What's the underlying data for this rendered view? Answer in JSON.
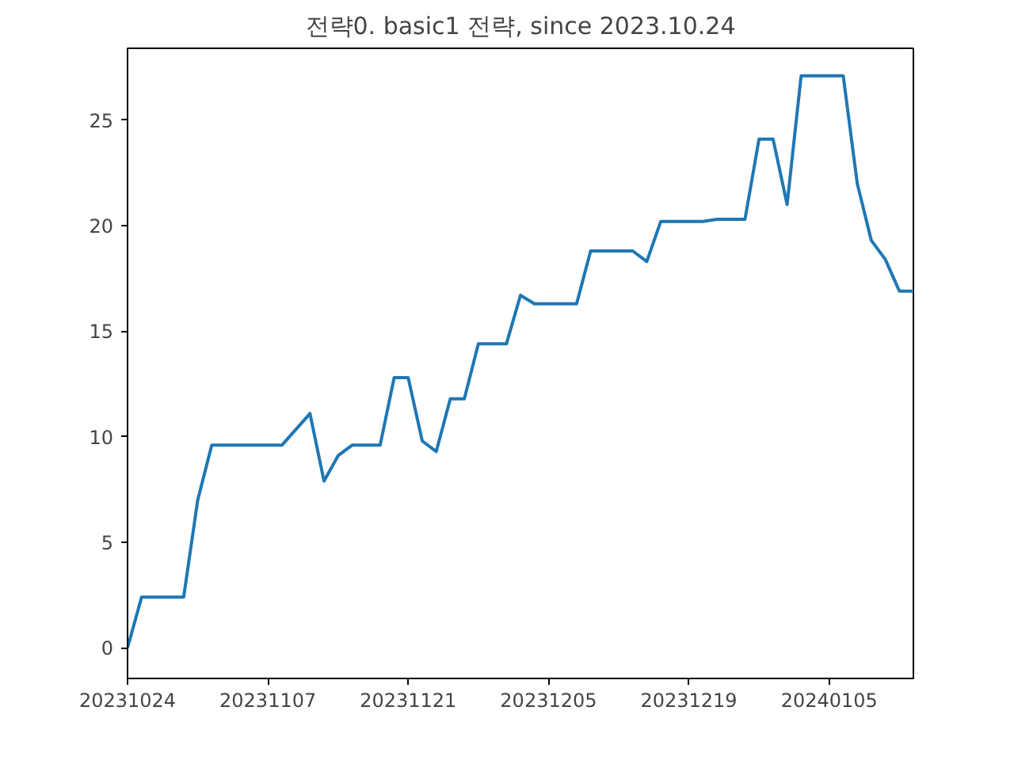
{
  "chart_data": {
    "type": "line",
    "title": "전략0. basic1 전략, since 2023.10.24",
    "categories": [
      "20231024",
      null,
      null,
      null,
      null,
      null,
      null,
      null,
      null,
      null,
      "20231107",
      null,
      null,
      null,
      null,
      null,
      null,
      null,
      null,
      null,
      "20231121",
      null,
      null,
      null,
      null,
      null,
      null,
      null,
      null,
      null,
      "20231205",
      null,
      null,
      null,
      null,
      null,
      null,
      null,
      null,
      null,
      "20231219",
      null,
      null,
      null,
      null,
      null,
      null,
      null,
      null,
      null,
      "20240105",
      null,
      null,
      null,
      null,
      null,
      null
    ],
    "series": [
      {
        "color": "#1f77b4",
        "values": [
          0,
          2.4,
          2.4,
          2.4,
          2.4,
          7.0,
          9.6,
          9.6,
          9.6,
          9.6,
          9.6,
          9.6,
          10.35,
          11.1,
          7.9,
          9.1,
          9.6,
          9.6,
          9.6,
          12.8,
          12.8,
          9.8,
          9.3,
          11.8,
          11.8,
          14.4,
          14.4,
          14.4,
          16.7,
          16.3,
          16.3,
          16.3,
          16.3,
          18.8,
          18.8,
          18.8,
          18.8,
          18.3,
          20.2,
          20.2,
          20.2,
          20.2,
          20.3,
          20.3,
          20.3,
          24.1,
          24.1,
          21.0,
          27.1,
          27.1,
          27.1,
          27.1,
          22.0,
          19.3,
          18.4,
          16.9,
          16.9
        ]
      }
    ],
    "ylim": [
      -1.45,
      28.4
    ],
    "yticks": [
      0,
      5,
      10,
      15,
      20,
      25
    ],
    "grid": false,
    "marker": "none",
    "line_style": "solid"
  }
}
